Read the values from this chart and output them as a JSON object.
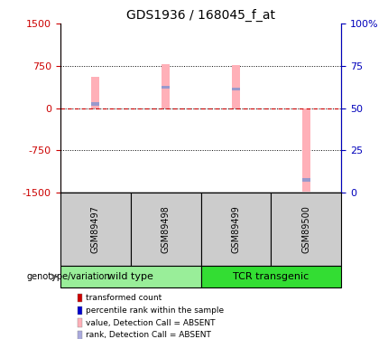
{
  "title": "GDS1936 / 168045_f_at",
  "samples": [
    "GSM89497",
    "GSM89498",
    "GSM89499",
    "GSM89500"
  ],
  "ylim": [
    -1500,
    1500
  ],
  "yticks": [
    -1500,
    -750,
    0,
    750,
    1500
  ],
  "y2ticks_pct": [
    0,
    25,
    50,
    75,
    100
  ],
  "y2labels": [
    "0",
    "25",
    "50",
    "75",
    "100%"
  ],
  "bar_values": [
    550,
    780,
    760,
    -1480
  ],
  "rank_values": [
    70,
    370,
    340,
    -1280
  ],
  "pink_color": "#FFB0B8",
  "blue_color": "#9999CC",
  "red_dashed_color": "#CC0000",
  "bar_width": 0.12,
  "blue_bar_height": 60,
  "ylabel_left_color": "#CC0000",
  "ylabel_right_color": "#0000BB",
  "sample_box_color": "#CCCCCC",
  "group_box_color_wt": "#99EE99",
  "group_box_color_tcr": "#33DD33",
  "legend_items": [
    {
      "label": "transformed count",
      "color": "#CC0000"
    },
    {
      "label": "percentile rank within the sample",
      "color": "#0000CC"
    },
    {
      "label": "value, Detection Call = ABSENT",
      "color": "#FFB0B8"
    },
    {
      "label": "rank, Detection Call = ABSENT",
      "color": "#AAAADD"
    }
  ]
}
